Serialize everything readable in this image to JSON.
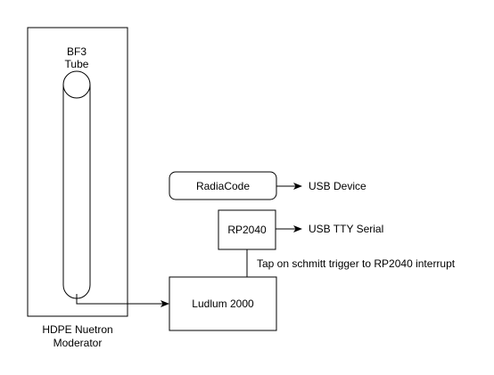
{
  "diagram": {
    "moderator": {
      "label_line1": "HDPE Nuetron",
      "label_line2": "Moderator"
    },
    "tube": {
      "label_line1": "BF3",
      "label_line2": "Tube"
    },
    "radiacode": {
      "label": "RadiaCode",
      "output_label": "USB Device"
    },
    "rp2040": {
      "label": "RP2040",
      "output_label": "USB TTY Serial"
    },
    "ludlum": {
      "label": "Ludlum 2000"
    },
    "tap_label": "Tap on schmitt trigger to RP2040 interrupt",
    "colors": {
      "stroke": "#000000",
      "background": "#ffffff"
    }
  }
}
